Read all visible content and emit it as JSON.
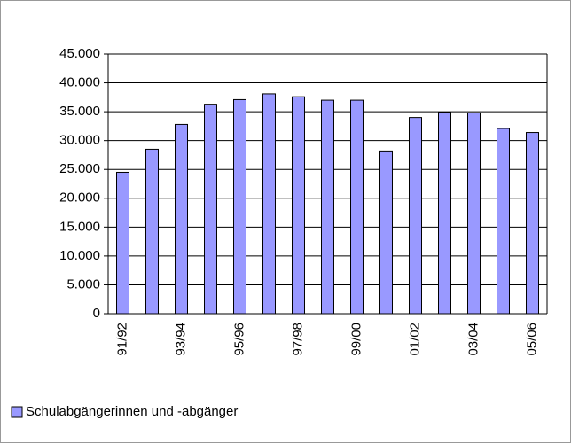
{
  "chart_data": {
    "type": "bar",
    "categories": [
      "91/92",
      null,
      "93/94",
      null,
      "95/96",
      null,
      "97/98",
      null,
      "99/00",
      null,
      "01/02",
      null,
      "03/04",
      null,
      "05/06"
    ],
    "series": [
      {
        "name": "Schulabgängerinnen und -abgänger",
        "color": "#9999ff",
        "values": [
          24500,
          28500,
          32800,
          36300,
          37100,
          38100,
          37600,
          37000,
          37000,
          28200,
          34000,
          34900,
          34800,
          32100,
          31400
        ]
      }
    ],
    "ylim": [
      0,
      45000
    ],
    "yticks": [
      0,
      {
        "value": 5000,
        "label": "5.000"
      },
      {
        "value": 10000,
        "label": "10.000"
      },
      {
        "value": 15000,
        "label": "15.000"
      },
      {
        "value": 20000,
        "label": "20.000"
      },
      {
        "value": 25000,
        "label": "25.000"
      },
      {
        "value": 30000,
        "label": "30.000"
      },
      {
        "value": 35000,
        "label": "35.000"
      },
      {
        "value": 40000,
        "label": "40.000"
      },
      {
        "value": 45000,
        "label": "45.000"
      }
    ],
    "grid": true,
    "legend": "bottom-left"
  }
}
